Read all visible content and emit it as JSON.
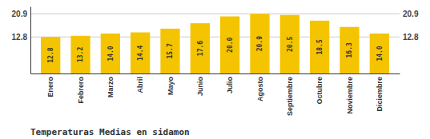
{
  "chart_data": {
    "type": "bar",
    "title": "Temperaturas Medias en sidamon",
    "categories": [
      "Enero",
      "Febrero",
      "Marzo",
      "Abril",
      "Mayo",
      "Junio",
      "Julio",
      "Agosto",
      "Septiembre",
      "Octubre",
      "Noviembre",
      "Diciembre"
    ],
    "values": [
      12.8,
      13.2,
      14.0,
      14.4,
      15.7,
      17.6,
      20.0,
      20.9,
      20.5,
      18.5,
      16.3,
      14.0
    ],
    "value_labels": [
      "12.8",
      "13.2",
      "14.0",
      "14.4",
      "15.7",
      "17.6",
      "20.0",
      "20.9",
      "20.5",
      "18.5",
      "16.3",
      "14.0"
    ],
    "color": "#F5C400",
    "ylim": [
      0,
      23.5
    ],
    "yticks": [
      12.8,
      20.9
    ],
    "grid": true,
    "data_labels": true
  }
}
